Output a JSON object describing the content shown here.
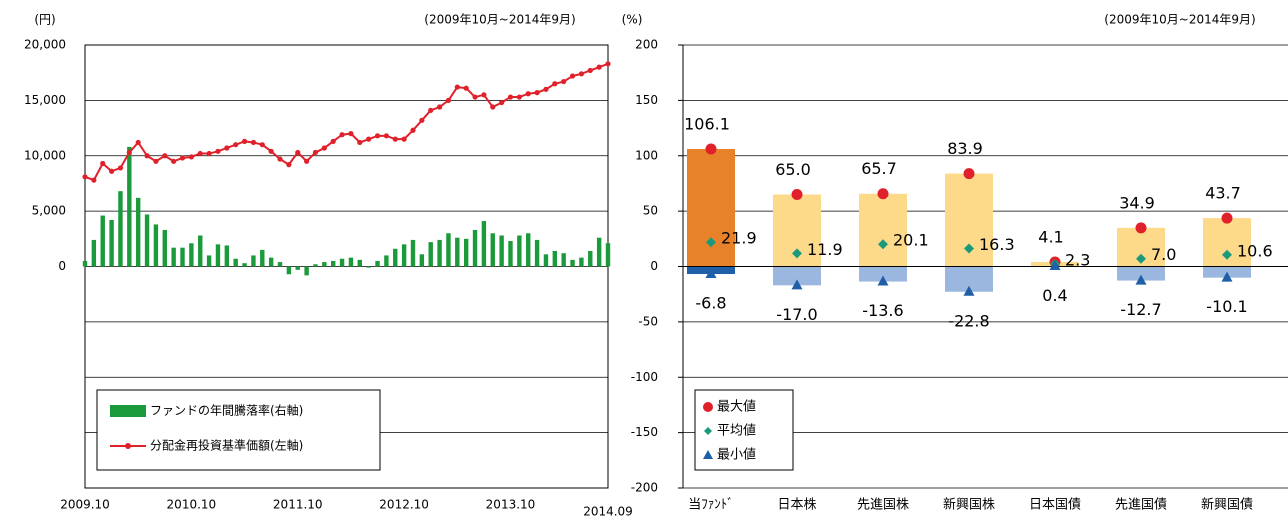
{
  "chart_data": [
    {
      "type": "bar-line",
      "subtitle": "(2009年10月~2014年9月)",
      "y_label": "(円)",
      "y2_label": "(%)",
      "categories": [
        "2009.10",
        null,
        null,
        null,
        null,
        null,
        null,
        null,
        null,
        null,
        null,
        null,
        "2010.10",
        null,
        null,
        null,
        null,
        null,
        null,
        null,
        null,
        null,
        null,
        null,
        "2011.10",
        null,
        null,
        null,
        null,
        null,
        null,
        null,
        null,
        null,
        null,
        null,
        "2012.10",
        null,
        null,
        null,
        null,
        null,
        null,
        null,
        null,
        null,
        null,
        null,
        "2013.10",
        null,
        null,
        null,
        null,
        null,
        null,
        null,
        null,
        null,
        null,
        "2014.09"
      ],
      "ylim": [
        -20000,
        20000
      ],
      "yticks": [
        0,
        {
          "value": 5000,
          "label": "5,000"
        },
        {
          "value": 10000,
          "label": "10,000"
        },
        {
          "value": 15000,
          "label": "15,000"
        },
        {
          "value": 20000,
          "label": "20,000"
        }
      ],
      "y2lim": [
        -200,
        200
      ],
      "y2ticks": [
        200,
        150,
        100,
        50,
        0,
        -50,
        -100,
        -150,
        -200
      ],
      "grid": true,
      "series": [
        {
          "name": "ファンドの年間騰落率(右軸)",
          "kind": "bar",
          "axis": "y2",
          "color": "#1a9a3a",
          "values": [
            5,
            24,
            46,
            42,
            68,
            108,
            62,
            47,
            38,
            33,
            17,
            17,
            21,
            28,
            10,
            20,
            19,
            7,
            3,
            10,
            15,
            8,
            4,
            -7,
            -3,
            -8,
            2,
            4,
            5,
            7,
            8,
            6,
            -1,
            5,
            10,
            16,
            20,
            24,
            11,
            22,
            24,
            30,
            26,
            25,
            33,
            41,
            30,
            28,
            23,
            28,
            30,
            24,
            11,
            14,
            12,
            6,
            8,
            14,
            26,
            21
          ]
        },
        {
          "name": "分配金再投資基準価額(左軸)",
          "kind": "line",
          "color": "#e0202a",
          "values": [
            8100,
            7800,
            9300,
            8600,
            8900,
            10300,
            11200,
            10000,
            9500,
            10000,
            9500,
            9800,
            9900,
            10200,
            10200,
            10400,
            10700,
            11000,
            11300,
            11200,
            11000,
            10400,
            9700,
            9200,
            10300,
            9500,
            10300,
            10700,
            11300,
            11900,
            12000,
            11200,
            11500,
            11800,
            11800,
            11500,
            11500,
            12300,
            13200,
            14100,
            14400,
            15000,
            16200,
            16100,
            15300,
            15500,
            14400,
            14800,
            15300,
            15300,
            15600,
            15700,
            16000,
            16500,
            16700,
            17200,
            17400,
            17700,
            18000,
            18300
          ]
        }
      ]
    },
    {
      "type": "range",
      "subtitle": "(2009年10月~2014年9月)",
      "categories": [
        "当ﾌｧﾝﾄﾞ",
        "日本株",
        "先進国株",
        "新興国株",
        "日本国債",
        "先進国債",
        "新興国債"
      ],
      "ylim": [
        -200,
        200
      ],
      "highlight_colors": [
        "#e8822a",
        "#1f5fa8"
      ],
      "bar_colors": [
        "#fdd98a",
        "#9bb7e0"
      ],
      "series": [
        {
          "name": "最大値",
          "color": "#e0202a",
          "values": [
            106.1,
            65,
            65.7,
            83.9,
            4.1,
            34.9,
            43.7
          ],
          "value_labels": [
            "106.1",
            "65.0",
            "65.7",
            "83.9",
            "4.1",
            "34.9",
            "43.7"
          ]
        },
        {
          "name": "平均値",
          "color": "#1a9a7a",
          "values": [
            21.9,
            11.9,
            20.1,
            16.3,
            2.3,
            7,
            10.6
          ],
          "value_labels": [
            "21.9",
            "11.9",
            "20.1",
            "16.3",
            "2.3",
            "7.0",
            "10.6"
          ]
        },
        {
          "name": "最小値",
          "color": "#1f5fa8",
          "values": [
            -6.8,
            -17,
            -13.6,
            -22.8,
            0.4,
            -12.7,
            -10.1
          ],
          "value_labels": [
            "-6.8",
            "-17.0",
            "-13.6",
            "-22.8",
            "0.4",
            "-12.7",
            "-10.1"
          ]
        }
      ]
    }
  ]
}
